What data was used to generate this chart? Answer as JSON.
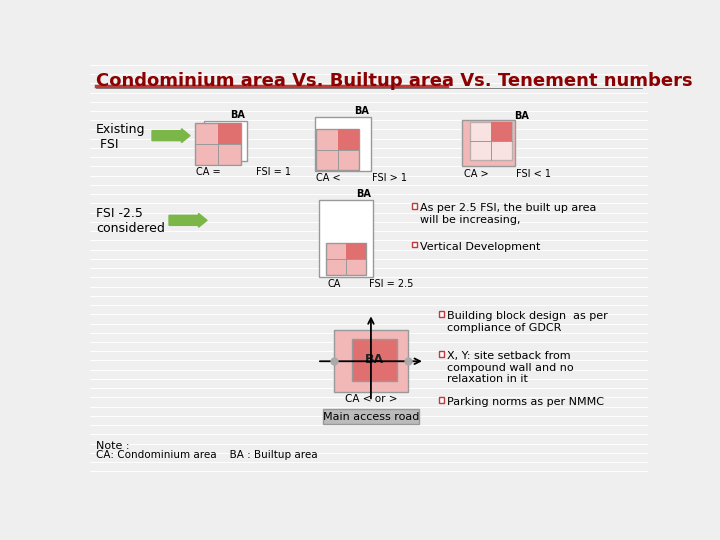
{
  "title": "Condominium area Vs. Builtup area Vs. Tenement numbers",
  "title_color": "#8B0000",
  "title_fontsize": 13,
  "bg_color": "#efefef",
  "light_red": "#f2b8b8",
  "mid_red": "#e07070",
  "dark_red": "#c0393b",
  "white": "#ffffff",
  "box_edge": "#999999",
  "green_arrow": "#7ab648",
  "bullet_color": "#c0393b",
  "stripe_color": "#ffffff",
  "notes": [
    "Note :",
    "CA: Condominium area    BA : Builtup area"
  ],
  "bullet_texts": [
    "As per 2.5 FSI, the built up area\nwill be increasing,",
    "Vertical Development",
    "Building block design  as per\ncompliance of GDCR",
    "X, Y: site setback from\ncompound wall and no\nrelaxation in it",
    "Parking norms as per NMMC"
  ]
}
